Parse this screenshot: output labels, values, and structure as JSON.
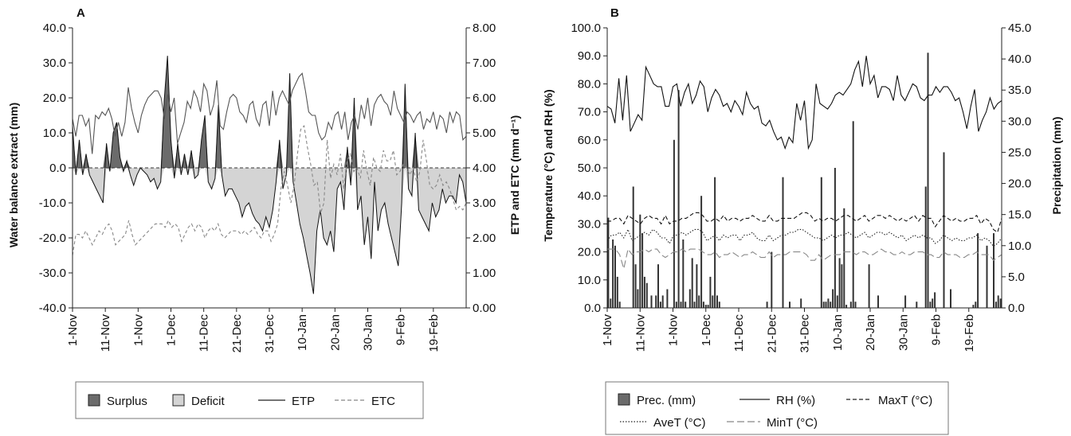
{
  "chart_data": [
    {
      "panel": "A",
      "type": "area",
      "ylabel": "Water balance extract (mm)",
      "y2label": "ETP and ETC (mm d⁻¹)",
      "ylim": [
        -40,
        40
      ],
      "y2lim": [
        0,
        8
      ],
      "yticks": [
        "40.0",
        "30.0",
        "20.0",
        "10.0",
        "0.0",
        "-10.0",
        "-20.0",
        "-30.0",
        "-40.0"
      ],
      "y2ticks": [
        "8.00",
        "7.00",
        "6.00",
        "5.00",
        "4.00",
        "3.00",
        "2.00",
        "1.00",
        "0.00"
      ],
      "xticks": [
        "1-Nov",
        "11-Nov",
        "1-Nov",
        "1-Dec",
        "11-Dec",
        "21-Dec",
        "31-Dec",
        "10-Jan",
        "20-Jan",
        "30-Jan",
        "9-Feb",
        "19-Feb"
      ],
      "zero_line": "dashed",
      "legend_position": "bottom",
      "legend": [
        {
          "name": "Surplus",
          "style": "dark-fill"
        },
        {
          "name": "Deficit",
          "style": "light-fill"
        },
        {
          "name": "ETP",
          "style": "solid-line"
        },
        {
          "name": "ETC",
          "style": "dashed-line"
        }
      ],
      "series": [
        {
          "name": "Water balance",
          "axis": "left",
          "values": [
            12,
            -2,
            8,
            -2,
            4,
            -2,
            -4,
            -6,
            -8,
            -10,
            7,
            -1,
            10,
            13,
            3,
            -1,
            2,
            -2,
            -5,
            -2,
            0,
            -1,
            -2,
            -4,
            -3,
            -6,
            -4,
            19,
            32,
            8,
            -3,
            7,
            -2,
            4,
            -2,
            5,
            -3,
            -2,
            8,
            15,
            -4,
            -6,
            -3,
            18,
            -2,
            -8,
            -6,
            -6,
            -8,
            -10,
            -14,
            -11,
            -10,
            -13,
            -15,
            -16,
            -18,
            -14,
            -17,
            -12,
            -4,
            8,
            -6,
            -2,
            27,
            -4,
            -10,
            -16,
            -20,
            -25,
            -30,
            -36,
            -18,
            -12,
            -20,
            -22,
            -18,
            -24,
            -6,
            -4,
            -12,
            6,
            -5,
            20,
            -12,
            -8,
            -22,
            -14,
            -26,
            -4,
            -18,
            -12,
            -10,
            -16,
            -20,
            -24,
            -28,
            -10,
            24,
            -6,
            -8,
            10,
            -12,
            -14,
            -16,
            -18,
            -10,
            -14,
            -12,
            -6,
            -10,
            -8,
            -8,
            -10,
            -2,
            -4,
            -10
          ]
        },
        {
          "name": "ETP",
          "axis": "right",
          "values": [
            5.4,
            4.9,
            5.5,
            5.5,
            5.2,
            5.4,
            4.4,
            5.5,
            5.4,
            5.6,
            5.5,
            5.7,
            5.4,
            4.9,
            5.3,
            4.9,
            5.3,
            6.3,
            5.7,
            5.3,
            5,
            5.5,
            5.8,
            6,
            6.1,
            6.2,
            6.2,
            6,
            5.4,
            6.1,
            5.6,
            6,
            4.7,
            5,
            5.3,
            5.9,
            5.7,
            6.2,
            6,
            5.6,
            6.4,
            6.2,
            5.5,
            5.8,
            6.5,
            5.2,
            5.1,
            5.6,
            6,
            6.1,
            6,
            5.6,
            5.5,
            5.3,
            5.8,
            5.9,
            5.4,
            5.2,
            5.8,
            5.9,
            5.2,
            6.2,
            5.5,
            6,
            6.2,
            6,
            5.8,
            6.2,
            6.4,
            6.6,
            6.7,
            6.2,
            5.6,
            5.5,
            5.5,
            5,
            4.8,
            4.9,
            5.3,
            5.1,
            5.5,
            5.6,
            5.1,
            5.6,
            4.8,
            5.3,
            5.5,
            5.1,
            5.8,
            5.4,
            6,
            5.2,
            5.8,
            6,
            6.1,
            5.9,
            5.8,
            5.5,
            6.2,
            5.7,
            5.5,
            5.3,
            5.6,
            5.5,
            5.3,
            5.5,
            5.6,
            5.1,
            5.4,
            5.3,
            5.6,
            5.1,
            5.5,
            5.4,
            5,
            5.6,
            5.3,
            5.6,
            5.5,
            4.8,
            4.9
          ]
        },
        {
          "name": "ETC",
          "axis": "right",
          "values": [
            1.5,
            2.1,
            2.1,
            2,
            2.2,
            2,
            1.8,
            2,
            2.2,
            2.1,
            2.3,
            2.4,
            2.2,
            1.8,
            1.9,
            2,
            2.1,
            2.5,
            2.1,
            1.8,
            1.9,
            2,
            2.1,
            2.2,
            2.3,
            2.4,
            2.4,
            2.4,
            2.3,
            2.5,
            2.3,
            2.4,
            2.3,
            1.9,
            2.1,
            2.3,
            2.4,
            2.2,
            2.4,
            2.3,
            2,
            2.2,
            2.3,
            2.2,
            2.4,
            2.1,
            2,
            2.1,
            2.2,
            2.2,
            2.2,
            2.1,
            2.2,
            2.1,
            2.2,
            2.3,
            2.1,
            2,
            2.2,
            2.2,
            1.9,
            2.1,
            2.4,
            3.4,
            3.9,
            3.5,
            3,
            3.5,
            4.4,
            5.1,
            5.2,
            4.6,
            4.1,
            3.5,
            3.6,
            2.7,
            3,
            4.8,
            3.7,
            4.1,
            3.8,
            4.4,
            3.4,
            4.2,
            4.4,
            3.9,
            4,
            3.7,
            4.5,
            3.9,
            3.5,
            4.3,
            4,
            3.9,
            4.5,
            4.2,
            4.2,
            4.5,
            3.8,
            3.9,
            4.1,
            4,
            3.8,
            4,
            3.6,
            3.9,
            4.8,
            4.2,
            3.5,
            3.4,
            3.5,
            3.8,
            3.5,
            3.6,
            3.4,
            3.1,
            2.8,
            2.9,
            2.8,
            3
          ]
        }
      ]
    },
    {
      "panel": "B",
      "type": "line",
      "ylabel": "Temperature (°C) and RH (%)",
      "y2label": "Precipitation (mm)",
      "ylim": [
        0,
        100
      ],
      "y2lim": [
        0,
        45
      ],
      "yticks": [
        "100.0",
        "90.0",
        "80.0",
        "70.0",
        "60.0",
        "50.0",
        "40.0",
        "30.0",
        "20.0",
        "10.0",
        "0.0"
      ],
      "y2ticks": [
        "45.0",
        "40.0",
        "35.0",
        "30.0",
        "25.0",
        "20.0",
        "15.0",
        "10.0",
        "5.0",
        "0.0"
      ],
      "xticks": [
        "1-Nov",
        "11-Nov",
        "1-Nov",
        "1-Dec",
        "11-Dec",
        "21-Dec",
        "31-Dec",
        "10-Jan",
        "20-Jan",
        "30-Jan",
        "9-Feb",
        "19-Feb"
      ],
      "legend_position": "bottom",
      "legend": [
        {
          "name": "Prec. (mm)",
          "style": "bar"
        },
        {
          "name": "RH (%)",
          "style": "solid-line"
        },
        {
          "name": "MaxT (°C)",
          "style": "dashed-line"
        },
        {
          "name": "AveT (°C)",
          "style": "dotted-line"
        },
        {
          "name": "MinT (°C)",
          "style": "long-dash-line"
        }
      ],
      "series": [
        {
          "name": "Prec. (mm)",
          "axis": "right",
          "type": "bar",
          "values": [
            14.5,
            1.5,
            11,
            10,
            5,
            1,
            0,
            0,
            0,
            0,
            0,
            19.5,
            7,
            3,
            15,
            12,
            5,
            4,
            0,
            2,
            0,
            2,
            7,
            1,
            2,
            0,
            3,
            0,
            0,
            27,
            1,
            35,
            1,
            11,
            1,
            0,
            3,
            8,
            1,
            7,
            2,
            18,
            1,
            0.5,
            0.5,
            5,
            2,
            21,
            2,
            1,
            0,
            0,
            0,
            0,
            0,
            0,
            0,
            0,
            0,
            0,
            0,
            0,
            0,
            0,
            0,
            0,
            0,
            0,
            0,
            0,
            1,
            0,
            9,
            0,
            0,
            0,
            0,
            21,
            0,
            0,
            1,
            0,
            0,
            0,
            0,
            1.5,
            0,
            0,
            0,
            0,
            0,
            0,
            0,
            0,
            21,
            1,
            1,
            1.5,
            1,
            3,
            22.5,
            2,
            8,
            7,
            16,
            0.5,
            0,
            1,
            30,
            1,
            0,
            0,
            0,
            0,
            0,
            7,
            0,
            0,
            0,
            2,
            0,
            0,
            0,
            0,
            0,
            0,
            0,
            0,
            0,
            0,
            0,
            2,
            0,
            0,
            0,
            0,
            1,
            0,
            0,
            0,
            19.5,
            41,
            1,
            1.5,
            2.5,
            0,
            0,
            0,
            25,
            0,
            0,
            3,
            0,
            0,
            0,
            0,
            0,
            0,
            0,
            0,
            0,
            0.5,
            1,
            12,
            0,
            0,
            0,
            10,
            0,
            0,
            12,
            1,
            2,
            1.5
          ]
        },
        {
          "name": "RH (%)",
          "axis": "left",
          "values": [
            72,
            71,
            66,
            82,
            67,
            83,
            63,
            66,
            69,
            67,
            86,
            83,
            80,
            79,
            79,
            72,
            72,
            79,
            80,
            72,
            77,
            80,
            73,
            76,
            81,
            79,
            70,
            75,
            78,
            76,
            72,
            73,
            70,
            74,
            72,
            69,
            77,
            73,
            71,
            72,
            66,
            65,
            67,
            63,
            60,
            61,
            57,
            61,
            59,
            73,
            67,
            74,
            57,
            60,
            80,
            73,
            72,
            71,
            73,
            76,
            77,
            76,
            78,
            80,
            85,
            88,
            79,
            90,
            80,
            83,
            75,
            79,
            79,
            78,
            74,
            83,
            76,
            74,
            77,
            80,
            79,
            75,
            74,
            76,
            76,
            79,
            77,
            79,
            79,
            77,
            74,
            75,
            70,
            64,
            72,
            78,
            63,
            67,
            70,
            75,
            71,
            73,
            74
          ]
        },
        {
          "name": "MaxT (°C)",
          "axis": "left",
          "values": [
            31,
            31,
            32,
            32,
            30,
            33,
            32,
            31,
            30,
            32,
            33,
            32,
            32,
            30,
            33,
            30,
            31,
            31,
            32,
            32,
            33,
            34,
            34,
            33,
            31,
            31,
            32,
            31,
            33,
            31,
            32,
            32,
            31,
            32,
            32,
            33,
            32,
            31,
            31,
            33,
            31,
            31,
            32,
            32,
            32,
            32,
            33,
            34,
            34,
            33,
            31,
            32,
            31,
            32,
            32,
            31,
            32,
            33,
            33,
            32,
            31,
            32,
            33,
            31,
            32,
            33,
            33,
            32,
            33,
            32,
            31,
            32,
            31,
            32,
            33,
            31,
            33,
            32,
            32,
            29,
            31,
            33,
            32,
            31,
            32,
            31,
            31,
            32,
            32,
            33,
            30,
            32,
            31,
            28,
            27,
            32
          ]
        },
        {
          "name": "AveT (°C)",
          "axis": "left",
          "values": [
            24,
            26,
            26,
            27,
            25,
            28,
            24,
            25,
            26,
            27,
            26,
            28,
            27,
            25,
            25,
            23,
            26,
            26,
            27,
            26,
            27,
            28,
            28,
            27,
            24,
            25,
            26,
            24,
            26,
            25,
            26,
            26,
            24,
            26,
            26,
            27,
            25,
            24,
            24,
            26,
            24,
            25,
            26,
            26,
            27,
            27,
            28,
            28,
            27,
            26,
            25,
            25,
            24,
            25,
            26,
            25,
            26,
            26,
            27,
            26,
            25,
            26,
            27,
            25,
            26,
            27,
            27,
            26,
            27,
            26,
            25,
            26,
            24,
            25,
            26,
            25,
            26,
            25,
            25,
            23,
            24,
            26,
            25,
            24,
            25,
            24,
            24,
            25,
            25,
            26,
            24,
            25,
            24,
            22,
            23,
            25
          ]
        },
        {
          "name": "MinT (°C)",
          "axis": "left",
          "values": [
            21,
            21,
            21,
            19,
            14,
            21,
            19,
            20,
            20,
            21,
            20,
            21,
            21,
            19,
            18,
            19,
            20,
            20,
            21,
            20,
            21,
            21,
            21,
            20,
            19,
            19,
            20,
            18,
            19,
            19,
            20,
            19,
            18,
            19,
            19,
            20,
            19,
            18,
            18,
            20,
            18,
            19,
            19,
            19,
            20,
            20,
            20,
            20,
            19,
            17,
            17,
            19,
            17,
            18,
            19,
            19,
            19,
            20,
            20,
            20,
            19,
            20,
            20,
            19,
            19,
            20,
            21,
            20,
            20,
            19,
            19,
            20,
            19,
            19,
            20,
            20,
            20,
            19,
            19,
            18,
            18,
            20,
            19,
            19,
            19,
            18,
            18,
            19,
            19,
            20,
            19,
            19,
            19,
            17,
            18,
            19
          ]
        }
      ]
    }
  ]
}
